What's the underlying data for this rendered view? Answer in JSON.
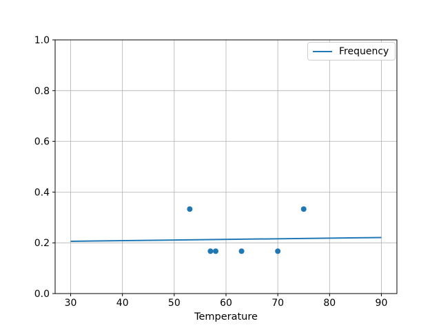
{
  "chart_data": {
    "type": "scatter",
    "title": "",
    "xlabel": "Temperature",
    "ylabel": "",
    "xlim": [
      27,
      93
    ],
    "ylim": [
      0.0,
      1.0
    ],
    "grid": true,
    "x_ticks": {
      "values": [
        30,
        40,
        50,
        60,
        70,
        80,
        90
      ],
      "labels": [
        "30",
        "40",
        "50",
        "60",
        "70",
        "80",
        "90"
      ]
    },
    "y_ticks": {
      "values": [
        0.0,
        0.2,
        0.4,
        0.6,
        0.8,
        1.0
      ],
      "labels": [
        "0.0",
        "0.2",
        "0.4",
        "0.6",
        "0.8",
        "1.0"
      ]
    },
    "series": [
      {
        "name": "frequency-points",
        "type": "scatter",
        "color": "#1f77b4",
        "marker_radius": 4,
        "points": [
          [
            53,
            0.333
          ],
          [
            57,
            0.167
          ],
          [
            58,
            0.167
          ],
          [
            63,
            0.167
          ],
          [
            70,
            0.167
          ],
          [
            75,
            0.333
          ]
        ]
      },
      {
        "name": "frequency-trend",
        "type": "line",
        "color": "#1f77b4",
        "width": 2,
        "points": [
          [
            30,
            0.206
          ],
          [
            90,
            0.221
          ]
        ]
      }
    ],
    "legend": {
      "position": "upper right",
      "entries": [
        {
          "label": "Frequency",
          "color": "#1f77b4",
          "marker": "line"
        }
      ]
    },
    "colors": {
      "accent": "#1f77b4",
      "grid": "#b0b0b0",
      "spine": "#000000",
      "legend_border": "#cccccc",
      "background": "#ffffff"
    }
  }
}
